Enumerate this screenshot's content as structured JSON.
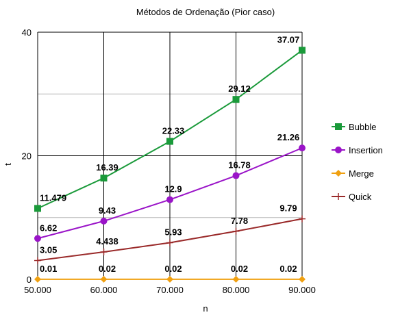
{
  "chart_data": {
    "type": "line",
    "title": "Métodos de Ordenação (Pior caso)",
    "xlabel": "n",
    "ylabel": "t",
    "categories": [
      "50.000",
      "60.000",
      "70.000",
      "80.000",
      "90.000"
    ],
    "ylim": [
      0,
      40
    ],
    "yticks": [
      "0",
      "20",
      "40"
    ],
    "grid": true,
    "legend_position": "right",
    "series": [
      {
        "name": "Bubble",
        "color": "#1a9a3a",
        "marker": "square",
        "values": [
          11.479,
          16.39,
          22.33,
          29.12,
          37.07
        ],
        "labels": [
          "11.479",
          "16.39",
          "22.33",
          "29.12",
          "37.07"
        ]
      },
      {
        "name": "Insertion",
        "color": "#9a14c8",
        "marker": "circle",
        "values": [
          6.62,
          9.43,
          12.9,
          16.78,
          21.26
        ],
        "labels": [
          "6.62",
          "9.43",
          "12.9",
          "16.78",
          "21.26"
        ]
      },
      {
        "name": "Merge",
        "color": "#f0a010",
        "marker": "diamond",
        "values": [
          0.01,
          0.02,
          0.02,
          0.02,
          0.02
        ],
        "labels": [
          "0.01",
          "0.02",
          "0.02",
          "0.02",
          "0.02"
        ]
      },
      {
        "name": "Quick",
        "color": "#9a2a2a",
        "marker": "plus",
        "values": [
          3.05,
          4.438,
          5.93,
          7.78,
          9.79
        ],
        "labels": [
          "3.05",
          "4.438",
          "5.93",
          "7.78",
          "9.79"
        ]
      }
    ]
  }
}
